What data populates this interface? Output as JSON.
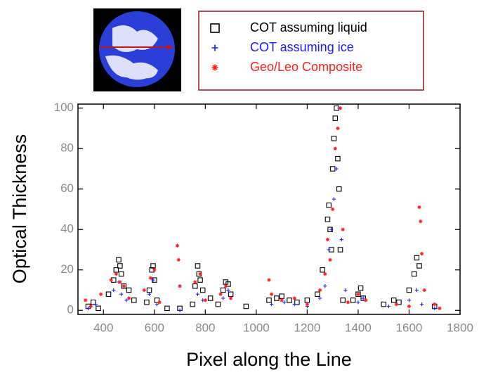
{
  "chart_data": {
    "type": "scatter",
    "x_label": "Pixel along the Line",
    "y_label": "Optical Thickness",
    "xlim": [
      300,
      1800
    ],
    "ylim": [
      -2,
      102
    ],
    "xticks": [
      400,
      600,
      800,
      1000,
      1200,
      1400,
      1600,
      1800
    ],
    "yticks": [
      0,
      20,
      40,
      60,
      80,
      100
    ],
    "series": [
      {
        "name": "COT assuming liquid",
        "color": "#000000",
        "marker": "square",
        "x": [
          340,
          360,
          380,
          420,
          440,
          450,
          460,
          465,
          470,
          480,
          500,
          520,
          570,
          580,
          590,
          595,
          600,
          610,
          650,
          700,
          750,
          760,
          770,
          775,
          780,
          790,
          820,
          850,
          870,
          880,
          890,
          900,
          960,
          1050,
          1080,
          1100,
          1130,
          1160,
          1200,
          1240,
          1260,
          1280,
          1285,
          1290,
          1295,
          1300,
          1305,
          1310,
          1315,
          1320,
          1325,
          1330,
          1340,
          1380,
          1400,
          1410,
          1420,
          1500,
          1540,
          1560,
          1600,
          1620,
          1630,
          1640,
          1700
        ],
        "values": [
          2,
          4,
          1,
          8,
          15,
          20,
          25,
          22,
          18,
          12,
          10,
          5,
          4,
          10,
          20,
          22,
          15,
          5,
          1,
          1,
          3,
          12,
          22,
          18,
          15,
          10,
          6,
          3,
          10,
          14,
          13,
          8,
          2,
          5,
          6,
          7,
          5,
          4,
          5,
          8,
          20,
          45,
          52,
          40,
          30,
          70,
          85,
          95,
          100,
          75,
          60,
          30,
          5,
          5,
          8,
          11,
          6,
          3,
          5,
          4,
          10,
          18,
          26,
          22,
          2
        ]
      },
      {
        "name": "COT assuming ice",
        "color": "#1a1aff",
        "marker": "plus",
        "x": [
          340,
          370,
          440,
          460,
          470,
          490,
          580,
          595,
          610,
          700,
          770,
          790,
          870,
          890,
          1060,
          1110,
          1150,
          1200,
          1250,
          1270,
          1285,
          1295,
          1305,
          1315,
          1325,
          1335,
          1350,
          1400,
          1420,
          1520,
          1600,
          1630,
          1650,
          1700
        ],
        "values": [
          1,
          3,
          10,
          14,
          8,
          5,
          8,
          15,
          3,
          0,
          8,
          5,
          6,
          10,
          3,
          4,
          3,
          2,
          6,
          12,
          30,
          40,
          55,
          70,
          100,
          35,
          10,
          4,
          6,
          2,
          5,
          10,
          3,
          1
        ]
      },
      {
        "name": "Geo/Leo Composite",
        "color": "#ff2020",
        "marker": "asterisk",
        "x": [
          330,
          350,
          390,
          430,
          450,
          465,
          480,
          500,
          560,
          585,
          600,
          620,
          690,
          695,
          700,
          760,
          780,
          800,
          860,
          880,
          900,
          1050,
          1060,
          1100,
          1150,
          1200,
          1250,
          1270,
          1280,
          1290,
          1300,
          1310,
          1320,
          1330,
          1340,
          1360,
          1400,
          1430,
          1550,
          1600,
          1640,
          1645,
          1650,
          1660,
          1700,
          1720
        ],
        "values": [
          5,
          2,
          8,
          15,
          18,
          14,
          12,
          6,
          10,
          16,
          20,
          4,
          32,
          25,
          12,
          14,
          18,
          5,
          8,
          12,
          6,
          15,
          8,
          5,
          6,
          3,
          10,
          18,
          35,
          25,
          50,
          80,
          90,
          100,
          40,
          4,
          8,
          5,
          3,
          2,
          51,
          44,
          28,
          10,
          3,
          1
        ]
      }
    ]
  }
}
